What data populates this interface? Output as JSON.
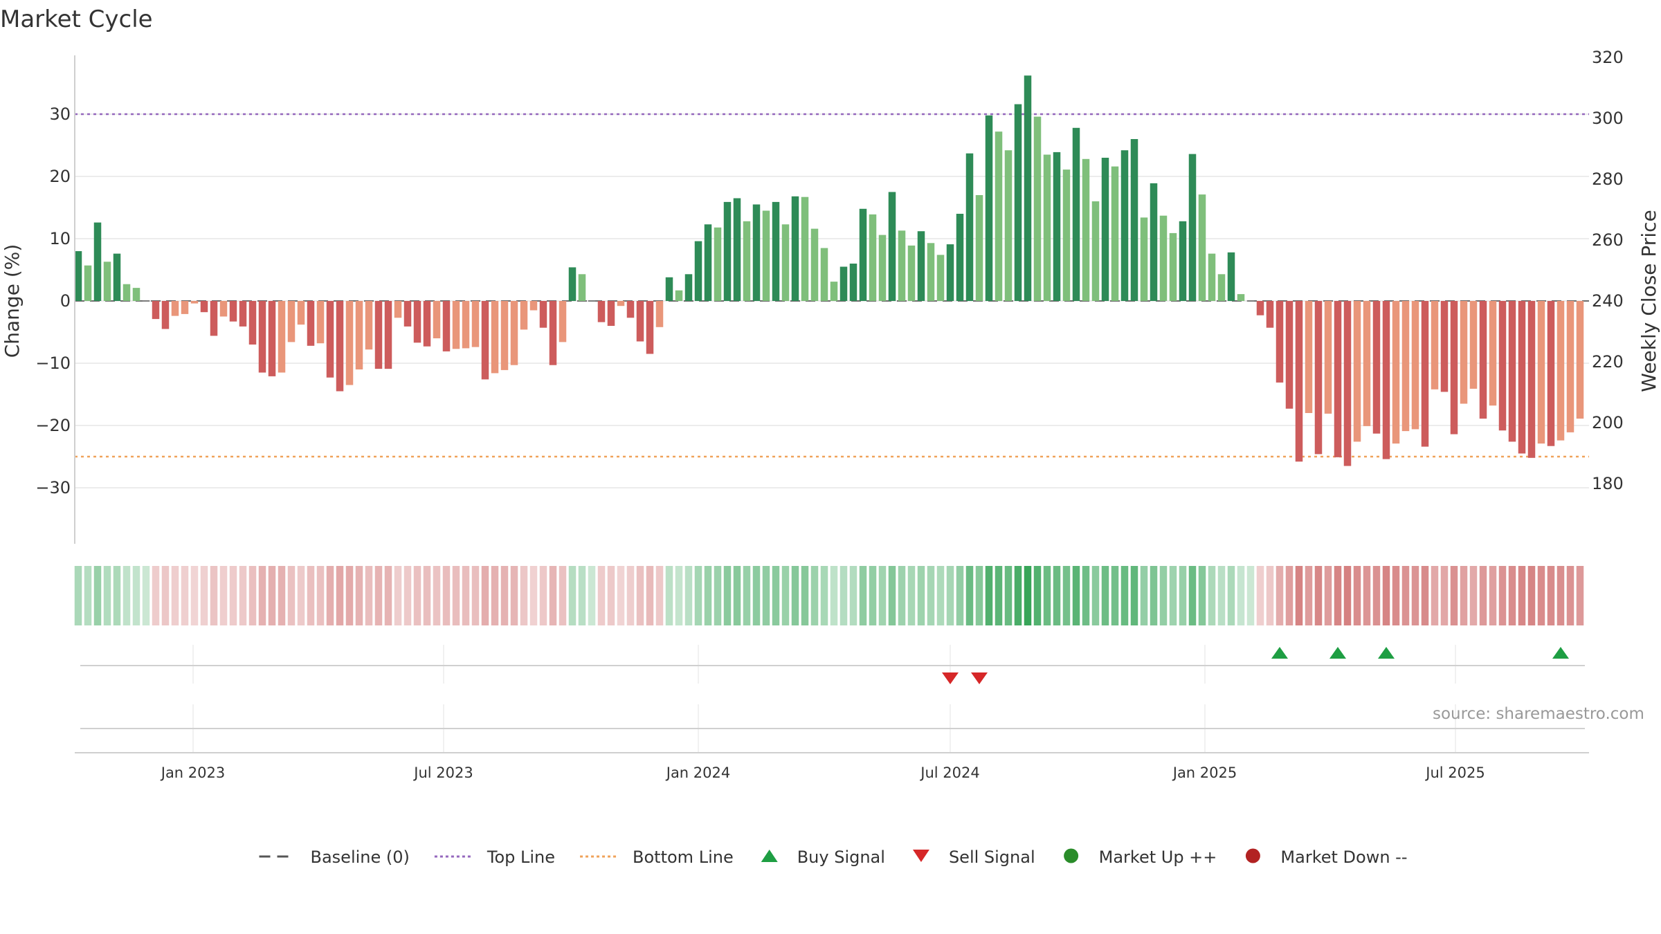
{
  "title": "Market Cycle",
  "source": "source: sharemaestro.com",
  "chart_data": {
    "type": "bar",
    "title": "Market Cycle",
    "ylabel_left": "Change (%)",
    "ylabel_right": "Weekly Close Price",
    "ylim_left": [
      -39,
      39
    ],
    "left_ticks": [
      30,
      20,
      10,
      0,
      -10,
      -20,
      -30
    ],
    "left_tick_labels": [
      "30",
      "20",
      "10",
      "0",
      "−10",
      "−20",
      "−30"
    ],
    "ylim_right": [
      160,
      320
    ],
    "right_ticks": [
      320,
      300,
      280,
      260,
      240,
      220,
      200,
      180
    ],
    "right_tick_labels": [
      "320",
      "300",
      "280",
      "260",
      "240",
      "220",
      "200",
      "180"
    ],
    "top_line": 30,
    "bottom_line": -25,
    "x_start": "2022-10-10",
    "x_labels": [
      {
        "date": "2023-01-01",
        "label": "Jan 2023"
      },
      {
        "date": "2023-07-01",
        "label": "Jul 2023"
      },
      {
        "date": "2024-01-01",
        "label": "Jan 2024"
      },
      {
        "date": "2024-07-01",
        "label": "Jul 2024"
      },
      {
        "date": "2025-01-01",
        "label": "Jan 2025"
      },
      {
        "date": "2025-07-01",
        "label": "Jul 2025"
      }
    ],
    "values": [
      8,
      5.7,
      12.6,
      6.3,
      7.6,
      2.7,
      2.1,
      0,
      -2.9,
      -4.5,
      -2.4,
      -2.1,
      -0.4,
      -1.8,
      -5.6,
      -2.5,
      -3.3,
      -4.1,
      -7,
      -11.5,
      -12.1,
      -11.5,
      -6.6,
      -3.8,
      -7.2,
      -6.8,
      -12.3,
      -14.5,
      -13.5,
      -11,
      -7.8,
      -10.9,
      -10.9,
      -2.7,
      -4.1,
      -6.7,
      -7.3,
      -6,
      -8.1,
      -7.7,
      -7.6,
      -7.4,
      -12.6,
      -11.6,
      -11.1,
      -10.3,
      -4.6,
      -1.5,
      -4.3,
      -10.3,
      -6.6,
      5.4,
      4.3,
      0,
      -3.4,
      -4,
      -0.8,
      -2.7,
      -6.5,
      -8.5,
      -4.2,
      3.8,
      1.7,
      4.3,
      9.6,
      12.3,
      11.8,
      15.9,
      16.5,
      12.8,
      15.5,
      14.5,
      15.9,
      12.3,
      16.8,
      16.7,
      11.6,
      8.5,
      3.1,
      5.5,
      6,
      14.8,
      13.9,
      10.6,
      17.5,
      11.3,
      8.9,
      11.2,
      9.3,
      7.4,
      9.1,
      14,
      23.7,
      17,
      29.8,
      27.2,
      24.2,
      31.6,
      36.2,
      29.6,
      23.5,
      23.9,
      21.1,
      27.8,
      22.8,
      16,
      23,
      21.6,
      24.2,
      26,
      13.4,
      18.9,
      13.7,
      10.9,
      12.8,
      23.6,
      17.1,
      7.6,
      4.3,
      7.8,
      1.1,
      0,
      -2.3,
      -4.3,
      -13.1,
      -17.3,
      -25.8,
      -18,
      -24.6,
      -18.1,
      -25.1,
      -26.5,
      -22.6,
      -20.1,
      -21.3,
      -25.4,
      -22.9,
      -20.9,
      -20.6,
      -23.4,
      -14.2,
      -14.6,
      -21.4,
      -16.5,
      -14.1,
      -18.9,
      -16.8,
      -20.8,
      -22.6,
      -24.5,
      -25.2,
      -22.9,
      -23.3,
      -22.4,
      -21.1,
      -18.9
    ],
    "buy_signals": [
      "2025-02-24",
      "2025-04-07",
      "2025-05-12",
      "2025-09-15"
    ],
    "sell_signals": [
      "2024-07-01",
      "2024-07-22"
    ],
    "colors": {
      "up_strong": "#2e8b57",
      "up_weak": "#7fbf7b",
      "down_strong": "#cd5c5c",
      "down_weak": "#e9967a",
      "top_line": "#9467bd",
      "bottom_line": "#f0a35a",
      "buy": "#1e9e43",
      "sell": "#d62728",
      "market_up": "#2a8c2a",
      "market_down": "#b22222",
      "baseline": "#555555"
    },
    "legend": {
      "placement": "bottom-center",
      "entries": [
        {
          "label": "Baseline (0)",
          "symbol": "dash",
          "color": "#555555"
        },
        {
          "label": "Top Line",
          "symbol": "dot-line",
          "color": "#9467bd"
        },
        {
          "label": "Bottom Line",
          "symbol": "dot-line",
          "color": "#f0a35a"
        },
        {
          "label": "Buy Signal",
          "symbol": "triangle-up",
          "color": "#1e9e43"
        },
        {
          "label": "Sell Signal",
          "symbol": "triangle-down",
          "color": "#d62728"
        },
        {
          "label": "Market Up ++",
          "symbol": "circle",
          "color": "#2a8c2a"
        },
        {
          "label": "Market Down --",
          "symbol": "circle",
          "color": "#b22222"
        }
      ]
    }
  }
}
